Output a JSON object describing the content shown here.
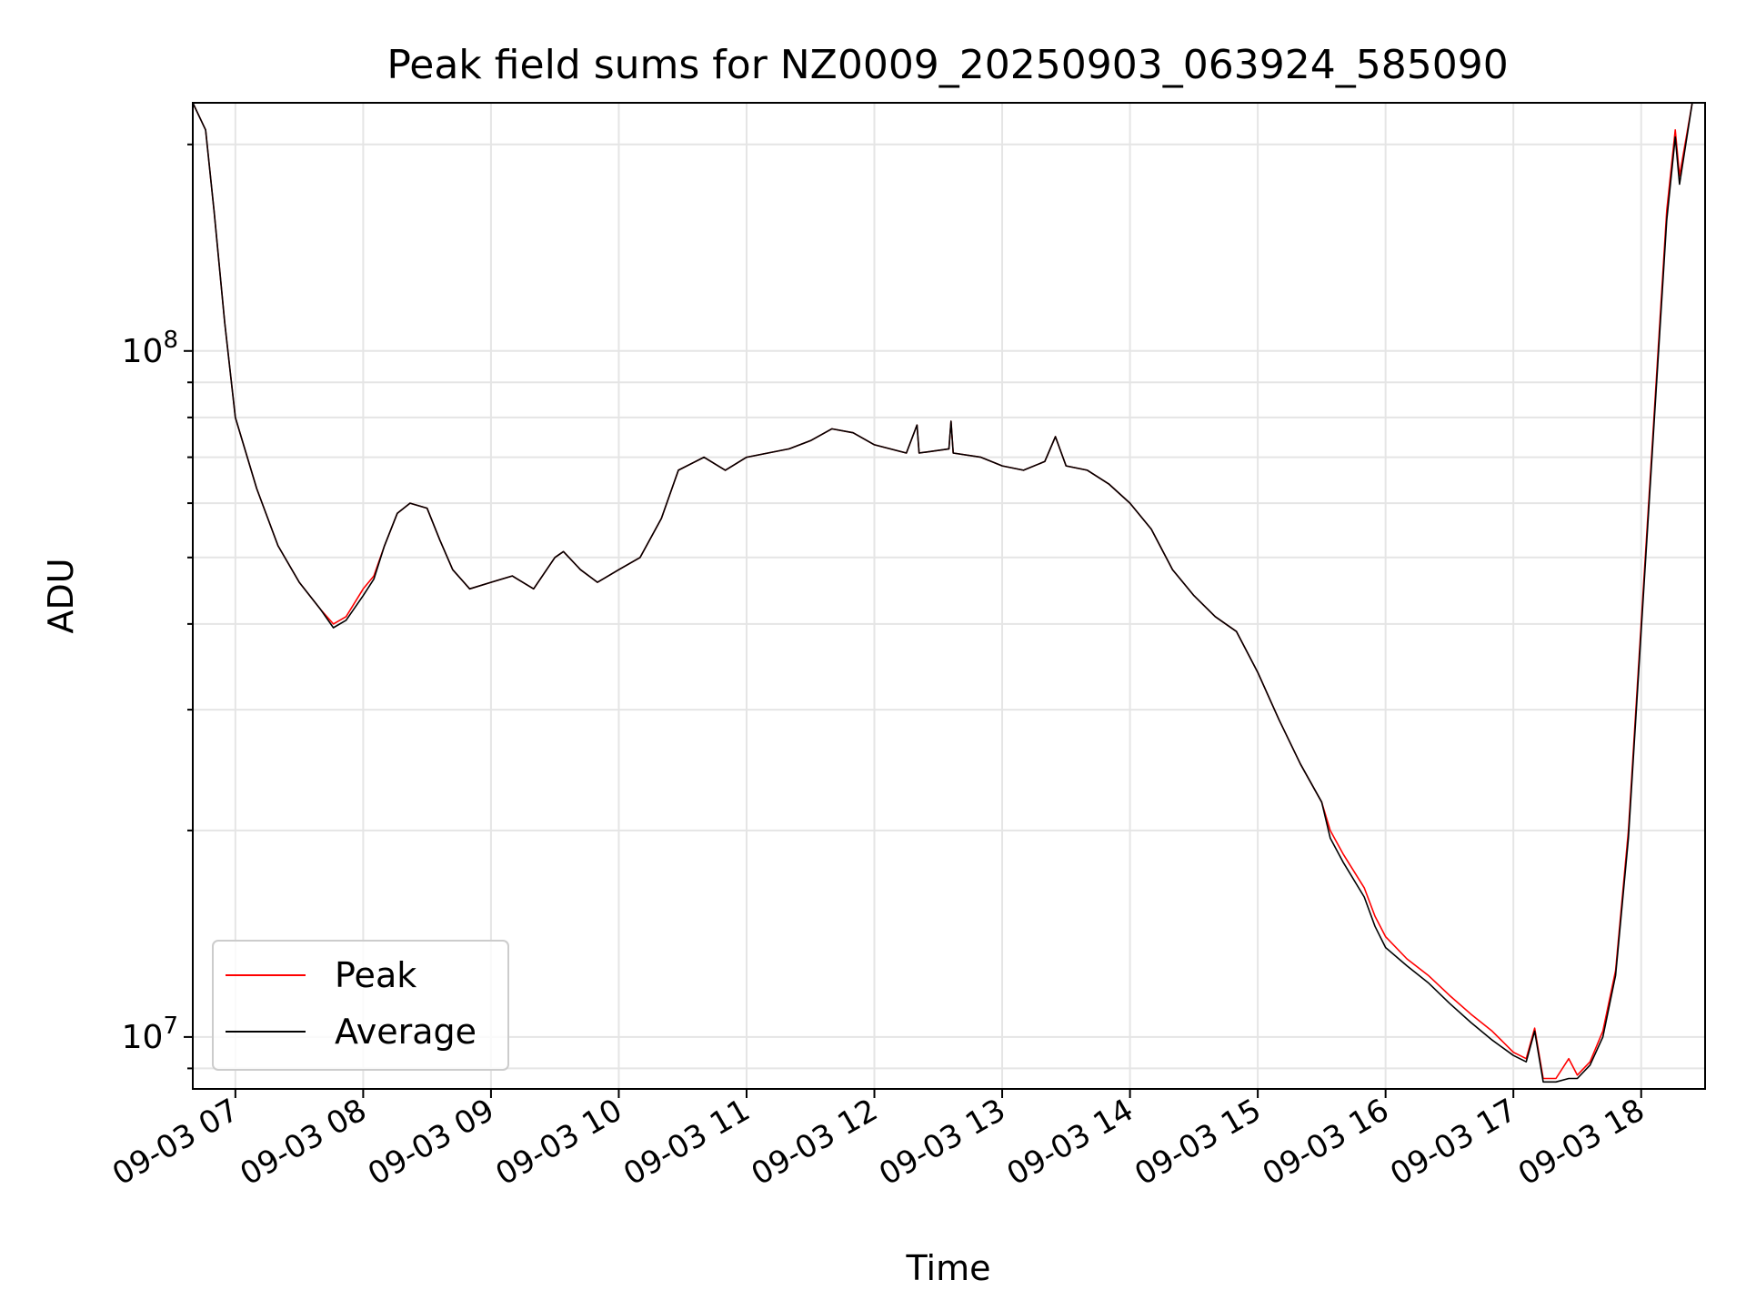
{
  "chart_data": {
    "type": "line",
    "title": "Peak field sums for NZ0009_20250903_063924_585090",
    "xlabel": "Time",
    "ylabel": "ADU",
    "yscale": "log",
    "xlim": [
      "09-03 06:40",
      "09-03 18:30"
    ],
    "ylim": [
      8400000,
      230000000
    ],
    "grid": true,
    "legend_position": "lower-left",
    "x_ticks": [
      {
        "value": "09-03 07:00",
        "label": "09-03 07"
      },
      {
        "value": "09-03 08:00",
        "label": "09-03 08"
      },
      {
        "value": "09-03 09:00",
        "label": "09-03 09"
      },
      {
        "value": "09-03 10:00",
        "label": "09-03 10"
      },
      {
        "value": "09-03 11:00",
        "label": "09-03 11"
      },
      {
        "value": "09-03 12:00",
        "label": "09-03 12"
      },
      {
        "value": "09-03 13:00",
        "label": "09-03 13"
      },
      {
        "value": "09-03 14:00",
        "label": "09-03 14"
      },
      {
        "value": "09-03 15:00",
        "label": "09-03 15"
      },
      {
        "value": "09-03 16:00",
        "label": "09-03 16"
      },
      {
        "value": "09-03 17:00",
        "label": "09-03 17"
      },
      {
        "value": "09-03 18:00",
        "label": "09-03 18"
      }
    ],
    "y_ticks": [
      {
        "value": 10000000,
        "base": "10",
        "exp": "7"
      },
      {
        "value": 100000000,
        "base": "10",
        "exp": "8"
      }
    ],
    "series": [
      {
        "name": "Peak",
        "color": "#ff0000",
        "points": [
          [
            "09-03 06:40",
            230000000
          ],
          [
            "09-03 06:46",
            210000000
          ],
          [
            "09-03 06:50",
            160000000
          ],
          [
            "09-03 06:55",
            110000000
          ],
          [
            "09-03 07:00",
            80000000
          ],
          [
            "09-03 07:10",
            63000000
          ],
          [
            "09-03 07:20",
            52000000
          ],
          [
            "09-03 07:30",
            46000000
          ],
          [
            "09-03 07:40",
            42000000
          ],
          [
            "09-03 07:46",
            40000000
          ],
          [
            "09-03 07:52",
            41000000
          ],
          [
            "09-03 08:00",
            45000000
          ],
          [
            "09-03 08:05",
            47000000
          ],
          [
            "09-03 08:10",
            52000000
          ],
          [
            "09-03 08:16",
            58000000
          ],
          [
            "09-03 08:22",
            60000000
          ],
          [
            "09-03 08:30",
            59000000
          ],
          [
            "09-03 08:36",
            53000000
          ],
          [
            "09-03 08:42",
            48000000
          ],
          [
            "09-03 08:50",
            45000000
          ],
          [
            "09-03 09:00",
            46000000
          ],
          [
            "09-03 09:10",
            47000000
          ],
          [
            "09-03 09:20",
            45000000
          ],
          [
            "09-03 09:30",
            50000000
          ],
          [
            "09-03 09:34",
            51000000
          ],
          [
            "09-03 09:42",
            48000000
          ],
          [
            "09-03 09:50",
            46000000
          ],
          [
            "09-03 10:00",
            48000000
          ],
          [
            "09-03 10:10",
            50000000
          ],
          [
            "09-03 10:20",
            57000000
          ],
          [
            "09-03 10:28",
            67000000
          ],
          [
            "09-03 10:40",
            70000000
          ],
          [
            "09-03 10:50",
            67000000
          ],
          [
            "09-03 11:00",
            70000000
          ],
          [
            "09-03 11:10",
            71000000
          ],
          [
            "09-03 11:20",
            72000000
          ],
          [
            "09-03 11:30",
            74000000
          ],
          [
            "09-03 11:40",
            77000000
          ],
          [
            "09-03 11:50",
            76000000
          ],
          [
            "09-03 12:00",
            73000000
          ],
          [
            "09-03 12:15",
            71000000
          ],
          [
            "09-03 12:20",
            78000000
          ],
          [
            "09-03 12:21",
            71000000
          ],
          [
            "09-03 12:35",
            72000000
          ],
          [
            "09-03 12:36",
            79000000
          ],
          [
            "09-03 12:37",
            71000000
          ],
          [
            "09-03 12:50",
            70000000
          ],
          [
            "09-03 13:00",
            68000000
          ],
          [
            "09-03 13:10",
            67000000
          ],
          [
            "09-03 13:20",
            69000000
          ],
          [
            "09-03 13:25",
            75000000
          ],
          [
            "09-03 13:30",
            68000000
          ],
          [
            "09-03 13:40",
            67000000
          ],
          [
            "09-03 13:50",
            64000000
          ],
          [
            "09-03 14:00",
            60000000
          ],
          [
            "09-03 14:10",
            55000000
          ],
          [
            "09-03 14:20",
            48000000
          ],
          [
            "09-03 14:30",
            44000000
          ],
          [
            "09-03 14:40",
            41000000
          ],
          [
            "09-03 14:50",
            39000000
          ],
          [
            "09-03 15:00",
            34000000
          ],
          [
            "09-03 15:10",
            29000000
          ],
          [
            "09-03 15:20",
            25000000
          ],
          [
            "09-03 15:30",
            22000000
          ],
          [
            "09-03 15:34",
            20000000
          ],
          [
            "09-03 15:40",
            18500000
          ],
          [
            "09-03 15:50",
            16500000
          ],
          [
            "09-03 15:55",
            15000000
          ],
          [
            "09-03 16:00",
            14000000
          ],
          [
            "09-03 16:10",
            13000000
          ],
          [
            "09-03 16:20",
            12300000
          ],
          [
            "09-03 16:30",
            11500000
          ],
          [
            "09-03 16:40",
            10800000
          ],
          [
            "09-03 16:50",
            10200000
          ],
          [
            "09-03 17:00",
            9500000
          ],
          [
            "09-03 17:06",
            9300000
          ],
          [
            "09-03 17:10",
            10300000
          ],
          [
            "09-03 17:14",
            8700000
          ],
          [
            "09-03 17:20",
            8700000
          ],
          [
            "09-03 17:26",
            9300000
          ],
          [
            "09-03 17:30",
            8800000
          ],
          [
            "09-03 17:36",
            9200000
          ],
          [
            "09-03 17:42",
            10200000
          ],
          [
            "09-03 17:48",
            12500000
          ],
          [
            "09-03 17:54",
            20000000
          ],
          [
            "09-03 18:00",
            40000000
          ],
          [
            "09-03 18:06",
            80000000
          ],
          [
            "09-03 18:12",
            160000000
          ],
          [
            "09-03 18:16",
            210000000
          ],
          [
            "09-03 18:18",
            180000000
          ],
          [
            "09-03 18:24",
            230000000
          ]
        ]
      },
      {
        "name": "Average",
        "color": "#000000",
        "points": [
          [
            "09-03 06:40",
            230000000
          ],
          [
            "09-03 06:46",
            210000000
          ],
          [
            "09-03 06:50",
            160000000
          ],
          [
            "09-03 06:55",
            110000000
          ],
          [
            "09-03 07:00",
            80000000
          ],
          [
            "09-03 07:10",
            63000000
          ],
          [
            "09-03 07:20",
            52000000
          ],
          [
            "09-03 07:30",
            46000000
          ],
          [
            "09-03 07:40",
            42000000
          ],
          [
            "09-03 07:46",
            39500000
          ],
          [
            "09-03 07:52",
            40500000
          ],
          [
            "09-03 08:00",
            44000000
          ],
          [
            "09-03 08:05",
            46500000
          ],
          [
            "09-03 08:10",
            52000000
          ],
          [
            "09-03 08:16",
            58000000
          ],
          [
            "09-03 08:22",
            60000000
          ],
          [
            "09-03 08:30",
            59000000
          ],
          [
            "09-03 08:36",
            53000000
          ],
          [
            "09-03 08:42",
            48000000
          ],
          [
            "09-03 08:50",
            45000000
          ],
          [
            "09-03 09:00",
            46000000
          ],
          [
            "09-03 09:10",
            47000000
          ],
          [
            "09-03 09:20",
            45000000
          ],
          [
            "09-03 09:30",
            50000000
          ],
          [
            "09-03 09:34",
            51000000
          ],
          [
            "09-03 09:42",
            48000000
          ],
          [
            "09-03 09:50",
            46000000
          ],
          [
            "09-03 10:00",
            48000000
          ],
          [
            "09-03 10:10",
            50000000
          ],
          [
            "09-03 10:20",
            57000000
          ],
          [
            "09-03 10:28",
            67000000
          ],
          [
            "09-03 10:40",
            70000000
          ],
          [
            "09-03 10:50",
            67000000
          ],
          [
            "09-03 11:00",
            70000000
          ],
          [
            "09-03 11:10",
            71000000
          ],
          [
            "09-03 11:20",
            72000000
          ],
          [
            "09-03 11:30",
            74000000
          ],
          [
            "09-03 11:40",
            77000000
          ],
          [
            "09-03 11:50",
            76000000
          ],
          [
            "09-03 12:00",
            73000000
          ],
          [
            "09-03 12:15",
            71000000
          ],
          [
            "09-03 12:20",
            78000000
          ],
          [
            "09-03 12:21",
            71000000
          ],
          [
            "09-03 12:35",
            72000000
          ],
          [
            "09-03 12:36",
            79000000
          ],
          [
            "09-03 12:37",
            71000000
          ],
          [
            "09-03 12:50",
            70000000
          ],
          [
            "09-03 13:00",
            68000000
          ],
          [
            "09-03 13:10",
            67000000
          ],
          [
            "09-03 13:20",
            69000000
          ],
          [
            "09-03 13:25",
            75000000
          ],
          [
            "09-03 13:30",
            68000000
          ],
          [
            "09-03 13:40",
            67000000
          ],
          [
            "09-03 13:50",
            64000000
          ],
          [
            "09-03 14:00",
            60000000
          ],
          [
            "09-03 14:10",
            55000000
          ],
          [
            "09-03 14:20",
            48000000
          ],
          [
            "09-03 14:30",
            44000000
          ],
          [
            "09-03 14:40",
            41000000
          ],
          [
            "09-03 14:50",
            39000000
          ],
          [
            "09-03 15:00",
            34000000
          ],
          [
            "09-03 15:10",
            29000000
          ],
          [
            "09-03 15:20",
            25000000
          ],
          [
            "09-03 15:30",
            22000000
          ],
          [
            "09-03 15:34",
            19500000
          ],
          [
            "09-03 15:40",
            18000000
          ],
          [
            "09-03 15:50",
            16000000
          ],
          [
            "09-03 15:55",
            14500000
          ],
          [
            "09-03 16:00",
            13500000
          ],
          [
            "09-03 16:10",
            12700000
          ],
          [
            "09-03 16:20",
            12000000
          ],
          [
            "09-03 16:30",
            11200000
          ],
          [
            "09-03 16:40",
            10500000
          ],
          [
            "09-03 16:50",
            9900000
          ],
          [
            "09-03 17:00",
            9400000
          ],
          [
            "09-03 17:06",
            9200000
          ],
          [
            "09-03 17:10",
            10200000
          ],
          [
            "09-03 17:14",
            8600000
          ],
          [
            "09-03 17:20",
            8600000
          ],
          [
            "09-03 17:26",
            8700000
          ],
          [
            "09-03 17:30",
            8700000
          ],
          [
            "09-03 17:36",
            9100000
          ],
          [
            "09-03 17:42",
            10000000
          ],
          [
            "09-03 17:48",
            12300000
          ],
          [
            "09-03 17:54",
            19500000
          ],
          [
            "09-03 18:00",
            39000000
          ],
          [
            "09-03 18:06",
            78000000
          ],
          [
            "09-03 18:12",
            155000000
          ],
          [
            "09-03 18:16",
            205000000
          ],
          [
            "09-03 18:18",
            175000000
          ],
          [
            "09-03 18:24",
            230000000
          ]
        ]
      }
    ]
  }
}
